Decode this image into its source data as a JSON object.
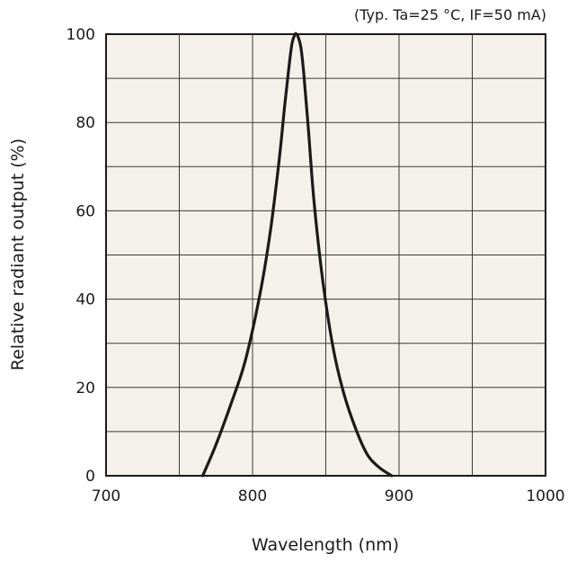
{
  "chart_data": {
    "type": "line",
    "title": "",
    "annotation": "(Typ. Ta=25 °C, IF=50 mA)",
    "xlabel": "Wavelength (nm)",
    "ylabel": "Relative radiant output (%)",
    "xlim": [
      700,
      1000
    ],
    "ylim": [
      0,
      100
    ],
    "x_ticks": [
      700,
      800,
      900,
      1000
    ],
    "y_ticks": [
      0,
      20,
      40,
      60,
      80,
      100
    ],
    "x_grid_step": 50,
    "y_grid_step": 10,
    "grid": true,
    "plot_background": "#f3f1e9",
    "grid_color": "#3a3a3a",
    "line_color": "#1a1a1a",
    "series": [
      {
        "x": [
          766,
          775,
          785,
          795,
          805,
          812,
          818,
          822,
          825,
          827,
          829,
          830,
          831,
          833,
          835,
          838,
          842,
          848,
          855,
          862,
          870,
          878,
          886,
          895
        ],
        "values": [
          0,
          7,
          16,
          26,
          41,
          55,
          71,
          84,
          93,
          98,
          100,
          100,
          99.5,
          97,
          91,
          79,
          62,
          44,
          29,
          19,
          11,
          5,
          2,
          0
        ]
      }
    ]
  }
}
